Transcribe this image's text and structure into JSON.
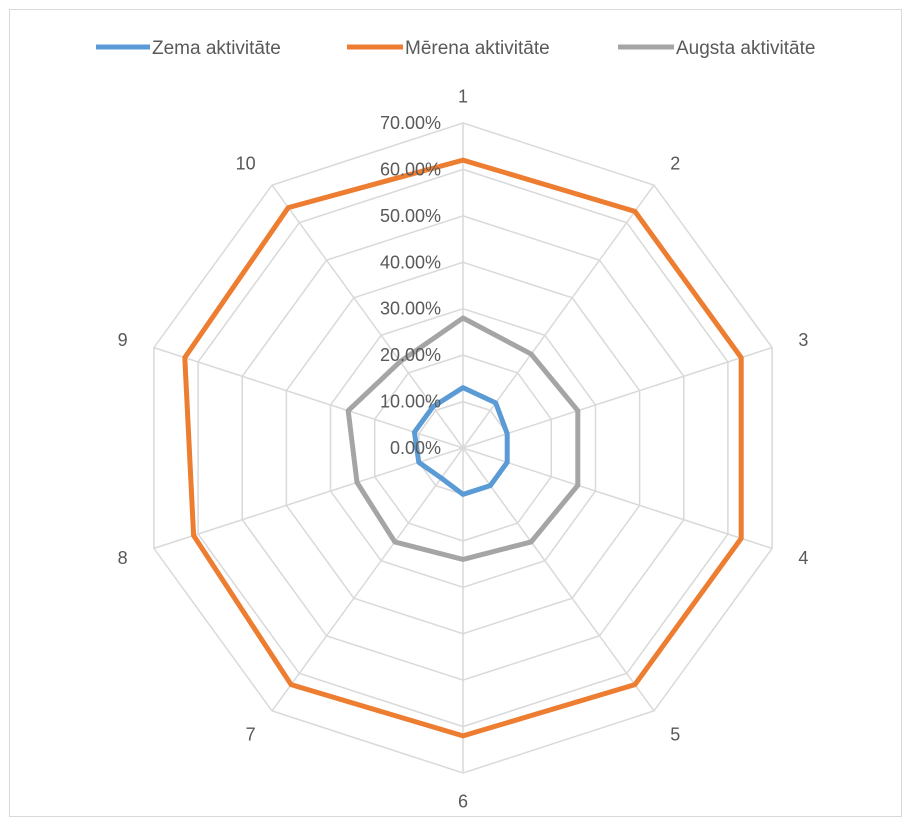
{
  "chart_data": {
    "type": "radar",
    "categories": [
      "1",
      "2",
      "3",
      "4",
      "5",
      "6",
      "7",
      "8",
      "9",
      "10"
    ],
    "series": [
      {
        "name": "Zema aktivitāte",
        "color": "#5b9bd5",
        "values": [
          0.13,
          0.12,
          0.1,
          0.1,
          0.1,
          0.1,
          0.08,
          0.1,
          0.11,
          0.11
        ]
      },
      {
        "name": "Mērena aktivitāte",
        "color": "#ed7d31",
        "values": [
          0.62,
          0.63,
          0.63,
          0.63,
          0.63,
          0.62,
          0.63,
          0.61,
          0.63,
          0.64
        ]
      },
      {
        "name": "Augsta aktivitāte",
        "color": "#a5a5a5",
        "values": [
          0.28,
          0.25,
          0.26,
          0.26,
          0.25,
          0.24,
          0.25,
          0.24,
          0.26,
          0.23
        ]
      }
    ],
    "radial_ticks": [
      "0.00%",
      "10.00%",
      "20.00%",
      "30.00%",
      "40.00%",
      "50.00%",
      "60.00%",
      "70.00%"
    ],
    "rmax": 0.7,
    "legend_position": "top",
    "grid": true
  }
}
